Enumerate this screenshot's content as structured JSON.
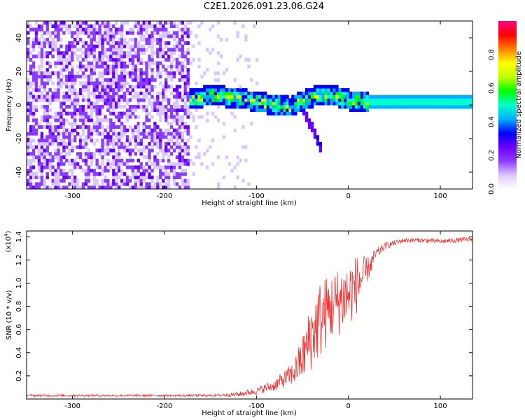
{
  "title": "C2E1.2026.091.23.06.G24",
  "chart_data": [
    {
      "type": "heatmap",
      "title": "",
      "xlabel": "Height of straight line (km)",
      "ylabel": "Frequency (Hz)",
      "xlim": [
        -350,
        135
      ],
      "ylim": [
        -50,
        50
      ],
      "x_ticks": [
        -300,
        -200,
        -100,
        0,
        100
      ],
      "y_ticks": [
        -40,
        -20,
        0,
        20,
        40
      ],
      "colorbar": {
        "label": "Normalized spectral amplitude",
        "range": [
          0,
          1
        ],
        "ticks": [
          0.0,
          0.2,
          0.4,
          0.6,
          0.8
        ],
        "colors": [
          "#ffffff",
          "#d9c8ff",
          "#8a3cff",
          "#6a00ff",
          "#0000ff",
          "#00b0ff",
          "#00ffcc",
          "#00ff00",
          "#c0ff00",
          "#ffff00",
          "#ff8000",
          "#ff0000",
          "#ff0080"
        ]
      },
      "regions": [
        {
          "name": "noise",
          "x_range": [
            -350,
            -175
          ],
          "freq_range": [
            -50,
            50
          ],
          "amplitude": 0.1
        },
        {
          "name": "sparse noise",
          "x_range": [
            -175,
            -100
          ],
          "freq_range": [
            -50,
            50
          ],
          "amplitude": 0.03
        },
        {
          "name": "signal track",
          "x_range": [
            -175,
            20
          ],
          "center_freq": [
            2,
            5,
            2,
            -1,
            -2,
            4,
            5,
            2,
            1
          ],
          "center_x": [
            -175,
            -150,
            -110,
            -80,
            -65,
            -40,
            -20,
            0,
            20
          ],
          "amplitude": 0.6
        },
        {
          "name": "steady signal",
          "x_range": [
            15,
            135
          ],
          "center_freq": 1,
          "amplitude": 0.5
        },
        {
          "name": "tail",
          "x_range": [
            -55,
            -30
          ],
          "freq_range": [
            -28,
            2
          ],
          "amplitude": 0.3
        }
      ]
    },
    {
      "type": "line",
      "title": "",
      "xlabel": "Height of straight line (km)",
      "ylabel": "SNR (10 * v/v)",
      "multiplier": "(x10",
      "multiplier_exp": "4",
      "xlim": [
        -350,
        135
      ],
      "ylim": [
        0,
        1.45
      ],
      "x_ticks": [
        -300,
        -200,
        -100,
        0,
        100
      ],
      "y_ticks": [
        0.2,
        0.4,
        0.6,
        0.8,
        1.0,
        1.2,
        1.4
      ],
      "color": "#ee3333",
      "series": [
        {
          "name": "SNR",
          "x": [
            -350,
            -300,
            -250,
            -200,
            -150,
            -120,
            -100,
            -80,
            -60,
            -50,
            -40,
            -30,
            -20,
            -10,
            0,
            10,
            20,
            30,
            40,
            60,
            80,
            100,
            135
          ],
          "y": [
            0.03,
            0.03,
            0.03,
            0.03,
            0.03,
            0.04,
            0.07,
            0.12,
            0.22,
            0.35,
            0.55,
            0.7,
            0.78,
            0.85,
            0.9,
            1.0,
            1.1,
            1.25,
            1.32,
            1.37,
            1.37,
            1.36,
            1.38
          ],
          "noise_amp": [
            0.01,
            0.01,
            0.01,
            0.01,
            0.01,
            0.02,
            0.03,
            0.05,
            0.1,
            0.2,
            0.3,
            0.35,
            0.3,
            0.3,
            0.3,
            0.25,
            0.12,
            0.05,
            0.03,
            0.02,
            0.02,
            0.02,
            0.02
          ]
        }
      ]
    }
  ]
}
